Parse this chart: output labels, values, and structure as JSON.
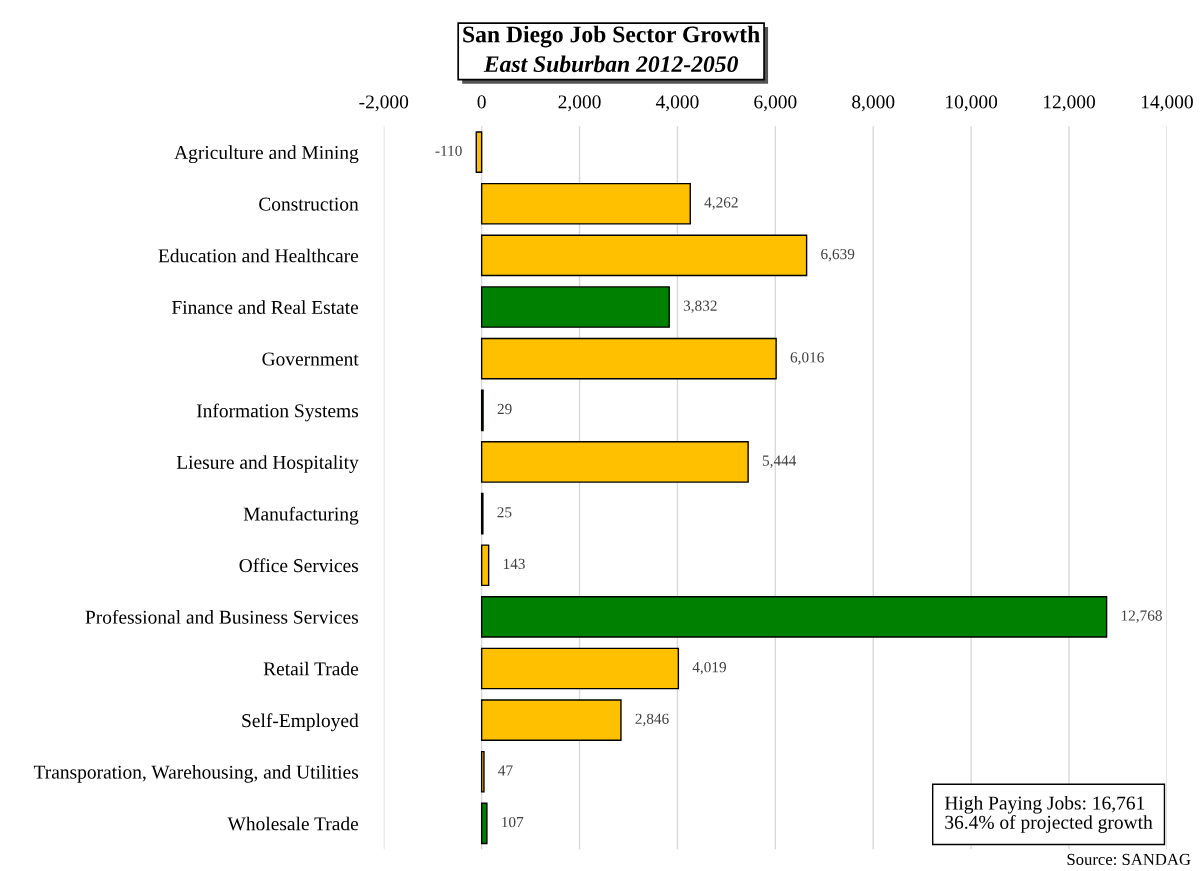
{
  "chart_data": {
    "type": "bar",
    "orientation": "horizontal",
    "title": "San Diego Job Sector Growth",
    "subtitle": "East Suburban 2012-2050",
    "categories": [
      "Agriculture and Mining",
      "Construction",
      "Education and Healthcare",
      "Finance and Real Estate",
      "Government",
      "Information Systems",
      "Liesure and Hospitality",
      "Manufacturing",
      "Office Services",
      "Professional and Business Services",
      "Retail Trade",
      "Self-Employed",
      "Transporation, Warehousing, and Utilities",
      "Wholesale Trade"
    ],
    "values": [
      -110,
      4262,
      6639,
      3832,
      6016,
      29,
      5444,
      25,
      143,
      12768,
      4019,
      2846,
      47,
      107
    ],
    "colors": [
      "#ffc000",
      "#ffc000",
      "#ffc000",
      "#008000",
      "#ffc000",
      "#ffc000",
      "#ffc000",
      "#ffc000",
      "#ffc000",
      "#008000",
      "#ffc000",
      "#ffc000",
      "#ffc000",
      "#008000"
    ],
    "value_labels": [
      "-110",
      "4,262",
      "6,639",
      "3,832",
      "6,016",
      "29",
      "5,444",
      "25",
      "143",
      "12,768",
      "4,019",
      "2,846",
      "47",
      "107"
    ],
    "xlim": [
      -2000,
      14000
    ],
    "xticks": [
      {
        "value": -2000,
        "label": "-2,000"
      },
      0,
      {
        "value": 2000,
        "label": "2,000"
      },
      {
        "value": 4000,
        "label": "4,000"
      },
      {
        "value": 6000,
        "label": "6,000"
      },
      {
        "value": 8000,
        "label": "8,000"
      },
      {
        "value": 10000,
        "label": "10,000"
      },
      {
        "value": 12000,
        "label": "12,000"
      },
      {
        "value": 14000,
        "label": "14,000"
      }
    ],
    "grid": "x",
    "annotations": [
      "High Paying Jobs: 16,761\n36.4% of projected growth",
      "Source: SANDAG"
    ]
  }
}
